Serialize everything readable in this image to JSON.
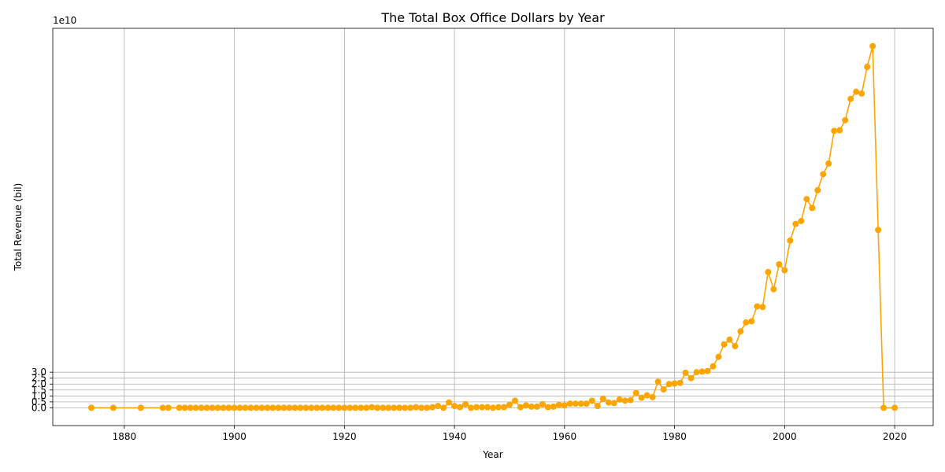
{
  "chart_data": {
    "type": "line",
    "title": "The Total Box Office Dollars by Year",
    "xlabel": "Year",
    "ylabel": "Total Revenue (bil)",
    "y_offset_label": "1e10",
    "xlim": [
      1867,
      2027
    ],
    "ylim": [
      -1.5,
      32
    ],
    "x_ticks": [
      1880,
      1900,
      1920,
      1940,
      1960,
      1980,
      2000,
      2020
    ],
    "y_ticks": [
      0.0,
      0.5,
      1.0,
      1.5,
      2.0,
      2.5,
      3.0
    ],
    "y_tick_labels": [
      "0.0",
      "0.5",
      "1.0",
      "1.5",
      "2.0",
      "2.5",
      "3.0"
    ],
    "grid": true,
    "color": "#ffa500",
    "series": [
      {
        "x": [
          1874,
          1878,
          1883,
          1887,
          1888,
          1890,
          1891,
          1892,
          1893,
          1894,
          1895,
          1896,
          1897,
          1898,
          1899,
          1900,
          1901,
          1902,
          1903,
          1904,
          1905,
          1906,
          1907,
          1908,
          1909,
          1910,
          1911,
          1912,
          1913,
          1914,
          1915,
          1916,
          1917,
          1918,
          1919,
          1920,
          1921,
          1922,
          1923,
          1924,
          1925,
          1926,
          1927,
          1928,
          1929,
          1930,
          1931,
          1932,
          1933,
          1934,
          1935,
          1936,
          1937,
          1938,
          1939,
          1940,
          1941,
          1942,
          1943,
          1944,
          1945,
          1946,
          1947,
          1948,
          1949,
          1950,
          1951,
          1952,
          1953,
          1954,
          1955,
          1956,
          1957,
          1958,
          1959,
          1960,
          1961,
          1962,
          1963,
          1964,
          1965,
          1966,
          1967,
          1968,
          1969,
          1970,
          1971,
          1972,
          1973,
          1974,
          1975,
          1976,
          1977,
          1978,
          1979,
          1980,
          1981,
          1982,
          1983,
          1984,
          1985,
          1986,
          1987,
          1988,
          1989,
          1990,
          1991,
          1992,
          1993,
          1994,
          1995,
          1996,
          1997,
          1998,
          1999,
          2000,
          2001,
          2002,
          2003,
          2004,
          2005,
          2006,
          2007,
          2008,
          2009,
          2010,
          2011,
          2012,
          2013,
          2014,
          2015,
          2016,
          2017,
          2018,
          2020
        ],
        "y": [
          0,
          0,
          0,
          0,
          0,
          0,
          0,
          0,
          0,
          0,
          0,
          0,
          0,
          0,
          0,
          0,
          0,
          0,
          0,
          0,
          0,
          0,
          0,
          0,
          0,
          0,
          0,
          0,
          0,
          0,
          0,
          0,
          0,
          0,
          0,
          0,
          0,
          0,
          0,
          0,
          0.05,
          0,
          0,
          0,
          0,
          0,
          0,
          0,
          0.05,
          0,
          0,
          0.05,
          0.15,
          0,
          0.45,
          0.15,
          0.05,
          0.3,
          0,
          0.05,
          0.05,
          0.05,
          0,
          0.05,
          0.05,
          0.25,
          0.6,
          0.05,
          0.2,
          0.1,
          0.1,
          0.3,
          0.05,
          0.1,
          0.25,
          0.2,
          0.35,
          0.35,
          0.35,
          0.35,
          0.6,
          0.15,
          0.75,
          0.45,
          0.4,
          0.7,
          0.6,
          0.65,
          1.25,
          0.85,
          1.05,
          0.9,
          2.2,
          1.55,
          2.0,
          2.05,
          2.1,
          2.95,
          2.5,
          3.0,
          3.05,
          3.1,
          3.5,
          4.3,
          5.35,
          5.75,
          5.2,
          6.45,
          7.2,
          7.3,
          8.55,
          8.5,
          11.45,
          10.0,
          12.1,
          11.6,
          14.1,
          15.5,
          15.75,
          17.6,
          16.85,
          18.35,
          19.7,
          20.6,
          23.35,
          23.4,
          24.25,
          26.05,
          26.65,
          26.5,
          28.75,
          30.5,
          15.0,
          0,
          0
        ]
      }
    ]
  }
}
